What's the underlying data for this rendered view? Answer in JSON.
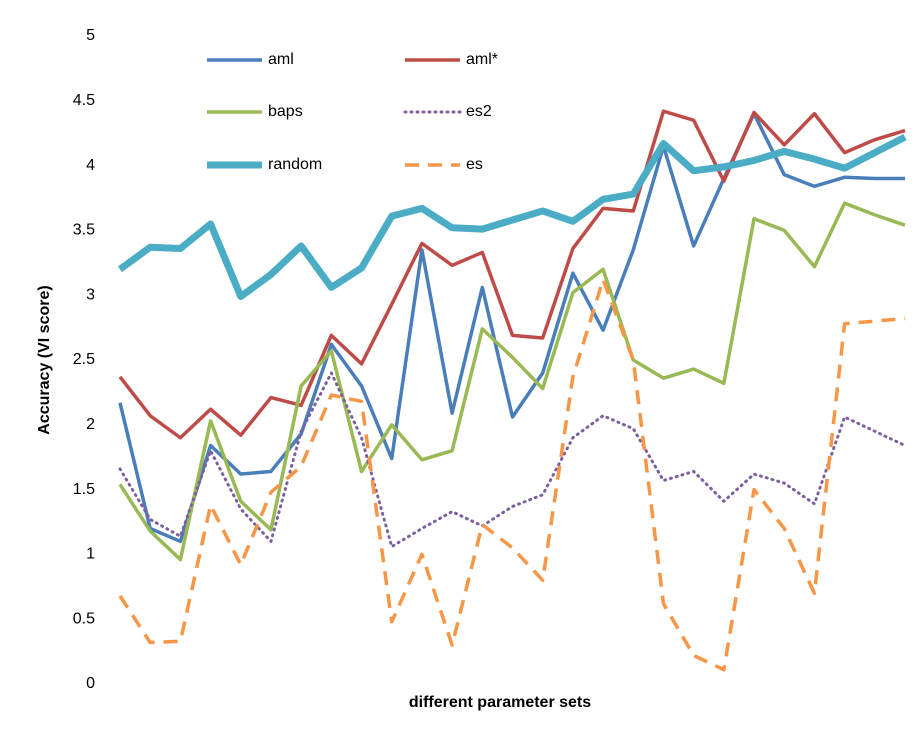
{
  "chart_data": {
    "type": "line",
    "xlabel": "different parameter sets",
    "ylabel": "Accuracy (VI score)",
    "categories": [
      null,
      null,
      null,
      null,
      null,
      null,
      null,
      null,
      null,
      null,
      null,
      null,
      null,
      null,
      null,
      null,
      null,
      null,
      null,
      null,
      null,
      null,
      null,
      null,
      null,
      null,
      null
    ],
    "ylim": [
      0,
      5
    ],
    "yticks": [
      0,
      0.5,
      1,
      1.5,
      2,
      2.5,
      3,
      3.5,
      4,
      4.5,
      5
    ],
    "grid": false,
    "legend": "top-left",
    "series": [
      {
        "name": "aml",
        "color": "#4a7ebb",
        "style": "solid",
        "values": [
          2.17,
          1.2,
          1.1,
          1.84,
          1.62,
          1.64,
          1.93,
          2.62,
          2.3,
          1.74,
          3.35,
          2.09,
          3.06,
          2.06,
          2.4,
          3.17,
          2.73,
          3.35,
          4.15,
          3.38,
          3.9,
          4.4,
          3.93,
          3.84,
          3.91,
          3.9,
          3.9
        ]
      },
      {
        "name": "aml*",
        "color": "#be4b48",
        "style": "solid",
        "values": [
          2.37,
          2.07,
          1.9,
          2.12,
          1.92,
          2.21,
          2.15,
          2.69,
          2.47,
          2.93,
          3.4,
          3.23,
          3.33,
          2.69,
          2.67,
          3.36,
          3.67,
          3.65,
          4.42,
          4.35,
          3.88,
          4.41,
          4.16,
          4.4,
          4.1,
          4.2,
          4.27
        ]
      },
      {
        "name": "baps",
        "color": "#98b954",
        "style": "solid",
        "values": [
          1.54,
          1.18,
          0.96,
          2.03,
          1.41,
          1.19,
          2.3,
          2.57,
          1.64,
          2.0,
          1.73,
          1.8,
          2.74,
          2.52,
          2.28,
          3.02,
          3.2,
          2.5,
          2.36,
          2.43,
          2.32,
          3.59,
          3.5,
          3.22,
          3.71,
          3.62,
          3.54
        ]
      },
      {
        "name": "es2",
        "color": "#7d5fa0",
        "style": "dotted",
        "values": [
          1.66,
          1.27,
          1.14,
          1.8,
          1.35,
          1.1,
          1.95,
          2.4,
          1.9,
          1.06,
          1.2,
          1.33,
          1.22,
          1.37,
          1.46,
          1.9,
          2.07,
          1.97,
          1.57,
          1.64,
          1.41,
          1.62,
          1.55,
          1.39,
          2.06,
          1.95,
          1.84
        ]
      },
      {
        "name": "random",
        "color": "#4bacc6",
        "style": "thick",
        "values": [
          3.2,
          3.37,
          3.36,
          3.55,
          2.99,
          3.16,
          3.38,
          3.06,
          3.21,
          3.61,
          3.67,
          3.52,
          3.51,
          3.58,
          3.65,
          3.57,
          3.74,
          3.78,
          4.17,
          3.96,
          3.99,
          4.04,
          4.11,
          4.05,
          3.98,
          4.1,
          4.22
        ]
      },
      {
        "name": "es",
        "color": "#f79646",
        "style": "dashed",
        "values": [
          0.68,
          0.32,
          0.33,
          1.38,
          0.92,
          1.48,
          1.68,
          2.23,
          2.18,
          0.48,
          1.0,
          0.3,
          1.23,
          1.05,
          0.8,
          2.37,
          3.12,
          2.5,
          0.62,
          0.22,
          0.11,
          1.5,
          1.2,
          0.7,
          2.78,
          2.8,
          2.82
        ]
      }
    ]
  }
}
